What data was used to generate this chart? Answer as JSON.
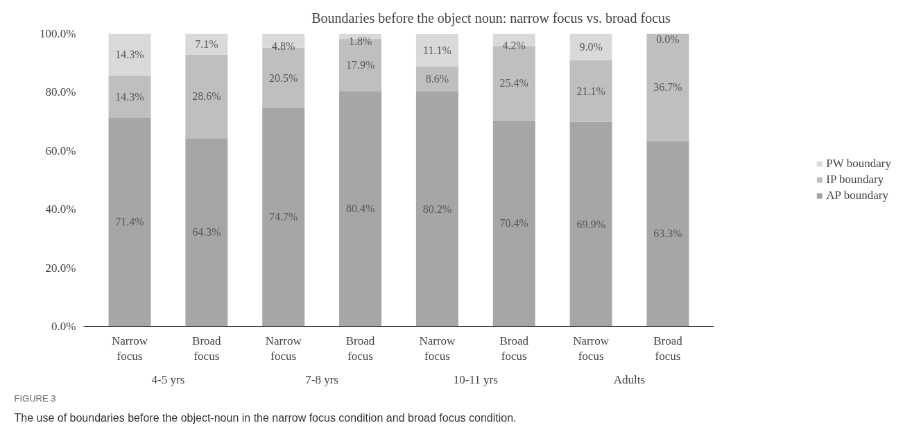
{
  "chart_data": {
    "type": "bar",
    "stacked": true,
    "title": "Boundaries before the object noun: narrow focus vs. broad focus",
    "categories": [
      "Narrow focus",
      "Broad focus",
      "Narrow focus",
      "Broad focus",
      "Narrow focus",
      "Broad focus",
      "Narrow focus",
      "Broad focus"
    ],
    "series": [
      {
        "name": "AP boundary",
        "color": "#a6a6a6",
        "values": [
          71.4,
          64.3,
          74.7,
          80.4,
          80.2,
          70.4,
          69.9,
          63.3
        ],
        "value_labels": [
          "71.4%",
          "64.3%",
          "74.7%",
          "80.4%",
          "80.2%",
          "70.4%",
          "69.9%",
          "63.3%"
        ]
      },
      {
        "name": "IP boundary",
        "color": "#bfbfbf",
        "values": [
          14.3,
          28.6,
          20.5,
          17.9,
          8.6,
          25.4,
          21.1,
          36.7
        ],
        "value_labels": [
          "14.3%",
          "28.6%",
          "20.5%",
          "17.9%",
          "8.6%",
          "25.4%",
          "21.1%",
          "36.7%"
        ]
      },
      {
        "name": "PW boundary",
        "color": "#d9d9d9",
        "values": [
          14.3,
          7.1,
          4.8,
          1.8,
          11.1,
          4.2,
          9.0,
          0.0
        ],
        "value_labels": [
          "14.3%",
          "7.1%",
          "4.8%",
          "1.8%",
          "11.1%",
          "4.2%",
          "9.0%",
          "0.0%"
        ]
      }
    ],
    "ylim": [
      0,
      100
    ],
    "yticks": [
      {
        "value": 0,
        "label": "0.0%"
      },
      {
        "value": 20,
        "label": "20.0%"
      },
      {
        "value": 40,
        "label": "40.0%"
      },
      {
        "value": 60,
        "label": "60.0%"
      },
      {
        "value": 80,
        "label": "80.0%"
      },
      {
        "value": 100,
        "label": "100.0%"
      }
    ],
    "grid": false,
    "legend": "right",
    "annotations": [
      "4-5 yrs",
      "7-8 yrs",
      "10-11 yrs",
      "Adults",
      "FIGURE 3",
      "The use of boundaries before the object-noun in the narrow focus condition and broad focus condition."
    ]
  }
}
